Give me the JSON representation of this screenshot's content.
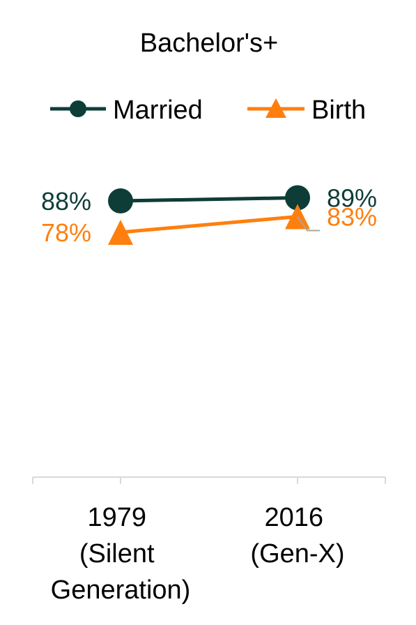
{
  "chart_data": {
    "type": "line",
    "title": "Bachelor's+",
    "xlabel": "",
    "ylabel": "",
    "categories": [
      [
        "1979",
        "(Silent",
        "Generation)"
      ],
      [
        "2016",
        "(Gen-X)"
      ]
    ],
    "series": [
      {
        "name": "Married",
        "values": [
          88,
          89
        ],
        "labels": [
          "88%",
          "89%"
        ],
        "color": "#0d3d36",
        "marker": "circle"
      },
      {
        "name": "Birth",
        "values": [
          78,
          83
        ],
        "labels": [
          "78%",
          "83%"
        ],
        "color": "#ff7f0e",
        "marker": "triangle"
      }
    ],
    "ylim": [
      0,
      100
    ],
    "grid": false,
    "legend_position": "top",
    "axis_color": "#d9d9d9"
  }
}
